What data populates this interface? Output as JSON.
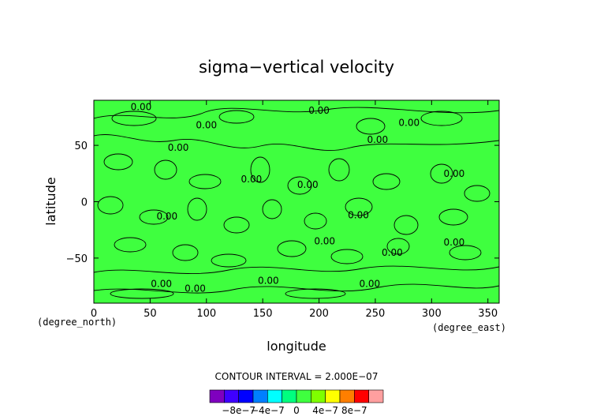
{
  "chart_data": {
    "type": "heatmap",
    "title": "sigma−vertical velocity",
    "xlabel": "longitude",
    "ylabel": "latitude",
    "x_unit": "(degree_east)",
    "y_unit": "(degree_north)",
    "xlim": [
      0,
      360
    ],
    "ylim": [
      -90,
      90
    ],
    "x_ticks": [
      0,
      50,
      100,
      150,
      200,
      250,
      300,
      350
    ],
    "x_tick_labels": [
      "0",
      "50",
      "100",
      "150",
      "200",
      "250",
      "300",
      "350"
    ],
    "y_ticks": [
      50,
      0,
      -50
    ],
    "y_tick_labels": [
      "50",
      "0",
      "−50"
    ],
    "contour_interval_label": "CONTOUR INTERVAL = 2.000E−07",
    "contour_labels": [
      {
        "text": "0.00",
        "lon": 42,
        "lat": 84
      },
      {
        "text": "0.00",
        "lon": 200,
        "lat": 81
      },
      {
        "text": "0.00",
        "lon": 100,
        "lat": 68
      },
      {
        "text": "0.00",
        "lon": 75,
        "lat": 48
      },
      {
        "text": "0.00",
        "lon": 280,
        "lat": 70
      },
      {
        "text": "0.00",
        "lon": 252,
        "lat": 55
      },
      {
        "text": "0.00",
        "lon": 320,
        "lat": 25
      },
      {
        "text": "0.00",
        "lon": 140,
        "lat": 20
      },
      {
        "text": "0.00",
        "lon": 190,
        "lat": 15
      },
      {
        "text": "0.00",
        "lon": 65,
        "lat": -13
      },
      {
        "text": "0.00",
        "lon": 235,
        "lat": -12
      },
      {
        "text": "0.00",
        "lon": 205,
        "lat": -35
      },
      {
        "text": "0.00",
        "lon": 320,
        "lat": -36
      },
      {
        "text": "0.00",
        "lon": 265,
        "lat": -45
      },
      {
        "text": "0.00",
        "lon": 155,
        "lat": -70
      },
      {
        "text": "0.00",
        "lon": 60,
        "lat": -73
      },
      {
        "text": "0.00",
        "lon": 90,
        "lat": -77
      },
      {
        "text": "0.00",
        "lon": 245,
        "lat": -73
      }
    ],
    "colorbar": {
      "colors": [
        "#7f00bf",
        "#3f00ff",
        "#0000ff",
        "#007fff",
        "#00ffff",
        "#00ff7f",
        "#3fff3f",
        "#7fff00",
        "#ffff00",
        "#ff7f00",
        "#ff0000",
        "#ff9f9f"
      ],
      "tick_labels": [
        "−8e−7",
        "−4e−7",
        "0",
        "4e−7",
        "8e−7"
      ],
      "tick_values": [
        -8e-07,
        -4e-07,
        0,
        4e-07,
        8e-07
      ]
    },
    "field_color": "#3fff3f",
    "grid": false
  }
}
